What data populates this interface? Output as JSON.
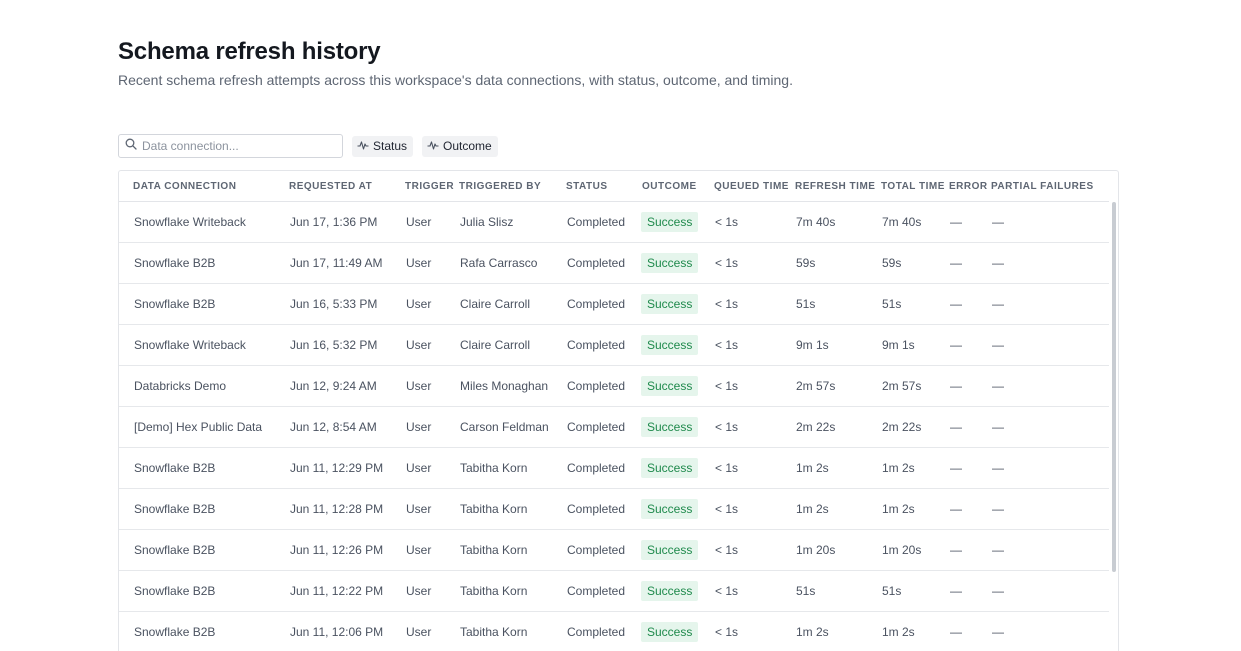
{
  "page": {
    "title": "Schema refresh history",
    "subtitle": "Recent schema refresh attempts across this workspace's data connections, with status, outcome, and timing."
  },
  "filters": {
    "search_placeholder": "Data connection...",
    "status_label": "Status",
    "outcome_label": "Outcome"
  },
  "table": {
    "columns": [
      "DATA CONNECTION",
      "REQUESTED AT",
      "TRIGGER",
      "TRIGGERED BY",
      "STATUS",
      "OUTCOME",
      "QUEUED TIME",
      "REFRESH TIME",
      "TOTAL TIME",
      "ERROR",
      "PARTIAL FAILURES"
    ],
    "rows": [
      {
        "connection": "Snowflake Writeback",
        "requested": "Jun 17, 1:36 PM",
        "trigger": "User",
        "by": "Julia Slisz",
        "status": "Completed",
        "outcome": "Success",
        "queued": "< 1s",
        "refresh": "7m 40s",
        "total": "7m 40s",
        "error": "—",
        "partial": "—"
      },
      {
        "connection": "Snowflake B2B",
        "requested": "Jun 17, 11:49 AM",
        "trigger": "User",
        "by": "Rafa Carrasco",
        "status": "Completed",
        "outcome": "Success",
        "queued": "< 1s",
        "refresh": "59s",
        "total": "59s",
        "error": "—",
        "partial": "—"
      },
      {
        "connection": "Snowflake B2B",
        "requested": "Jun 16, 5:33 PM",
        "trigger": "User",
        "by": "Claire Carroll",
        "status": "Completed",
        "outcome": "Success",
        "queued": "< 1s",
        "refresh": "51s",
        "total": "51s",
        "error": "—",
        "partial": "—"
      },
      {
        "connection": "Snowflake Writeback",
        "requested": "Jun 16, 5:32 PM",
        "trigger": "User",
        "by": "Claire Carroll",
        "status": "Completed",
        "outcome": "Success",
        "queued": "< 1s",
        "refresh": "9m 1s",
        "total": "9m 1s",
        "error": "—",
        "partial": "—"
      },
      {
        "connection": "Databricks Demo",
        "requested": "Jun 12, 9:24 AM",
        "trigger": "User",
        "by": "Miles Monaghan",
        "status": "Completed",
        "outcome": "Success",
        "queued": "< 1s",
        "refresh": "2m 57s",
        "total": "2m 57s",
        "error": "—",
        "partial": "—"
      },
      {
        "connection": "[Demo] Hex Public Data",
        "requested": "Jun 12, 8:54 AM",
        "trigger": "User",
        "by": "Carson Feldman",
        "status": "Completed",
        "outcome": "Success",
        "queued": "< 1s",
        "refresh": "2m 22s",
        "total": "2m 22s",
        "error": "—",
        "partial": "—"
      },
      {
        "connection": "Snowflake B2B",
        "requested": "Jun 11, 12:29 PM",
        "trigger": "User",
        "by": "Tabitha Korn",
        "status": "Completed",
        "outcome": "Success",
        "queued": "< 1s",
        "refresh": "1m 2s",
        "total": "1m 2s",
        "error": "—",
        "partial": "—"
      },
      {
        "connection": "Snowflake B2B",
        "requested": "Jun 11, 12:28 PM",
        "trigger": "User",
        "by": "Tabitha Korn",
        "status": "Completed",
        "outcome": "Success",
        "queued": "< 1s",
        "refresh": "1m 2s",
        "total": "1m 2s",
        "error": "—",
        "partial": "—"
      },
      {
        "connection": "Snowflake B2B",
        "requested": "Jun 11, 12:26 PM",
        "trigger": "User",
        "by": "Tabitha Korn",
        "status": "Completed",
        "outcome": "Success",
        "queued": "< 1s",
        "refresh": "1m 20s",
        "total": "1m 20s",
        "error": "—",
        "partial": "—"
      },
      {
        "connection": "Snowflake B2B",
        "requested": "Jun 11, 12:22 PM",
        "trigger": "User",
        "by": "Tabitha Korn",
        "status": "Completed",
        "outcome": "Success",
        "queued": "< 1s",
        "refresh": "51s",
        "total": "51s",
        "error": "—",
        "partial": "—"
      },
      {
        "connection": "Snowflake B2B",
        "requested": "Jun 11, 12:06 PM",
        "trigger": "User",
        "by": "Tabitha Korn",
        "status": "Completed",
        "outcome": "Success",
        "queued": "< 1s",
        "refresh": "1m 2s",
        "total": "1m 2s",
        "error": "—",
        "partial": "—"
      }
    ]
  },
  "icons": {
    "search": "search-icon",
    "filter": "pulse-icon"
  },
  "colors": {
    "success_text": "#1f8a4c",
    "success_bg": "#e5f5ec"
  }
}
